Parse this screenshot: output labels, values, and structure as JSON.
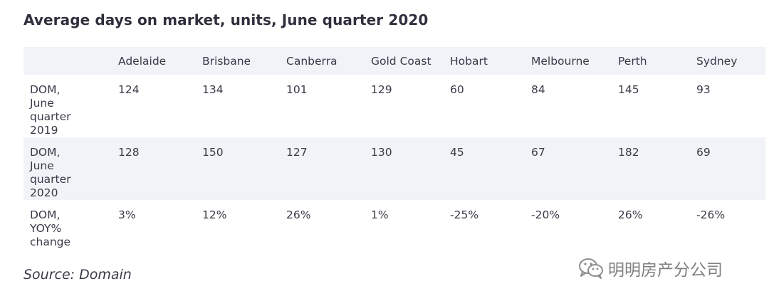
{
  "title": "Average days on market, units, June quarter 2020",
  "source": "Source: Domain",
  "watermark": {
    "icon": "wechat-icon",
    "text": "明明房产分公司"
  },
  "chart_data": {
    "type": "table",
    "title": "Average days on market, units, June quarter 2020",
    "columns": [
      "",
      "Adelaide",
      "Brisbane",
      "Canberra",
      "Gold Coast",
      "Hobart",
      "Melbourne",
      "Perth",
      "Sydney"
    ],
    "rows": [
      {
        "label": "DOM, June quarter 2019",
        "values": [
          "124",
          "134",
          "101",
          "129",
          "60",
          "84",
          "145",
          "93"
        ]
      },
      {
        "label": "DOM, June quarter 2020",
        "values": [
          "128",
          "150",
          "127",
          "130",
          "45",
          "67",
          "182",
          "69"
        ]
      },
      {
        "label": "DOM, YOY% change",
        "values": [
          "3%",
          "12%",
          "26%",
          "1%",
          "-25%",
          "-20%",
          "26%",
          "-26%"
        ]
      }
    ]
  }
}
